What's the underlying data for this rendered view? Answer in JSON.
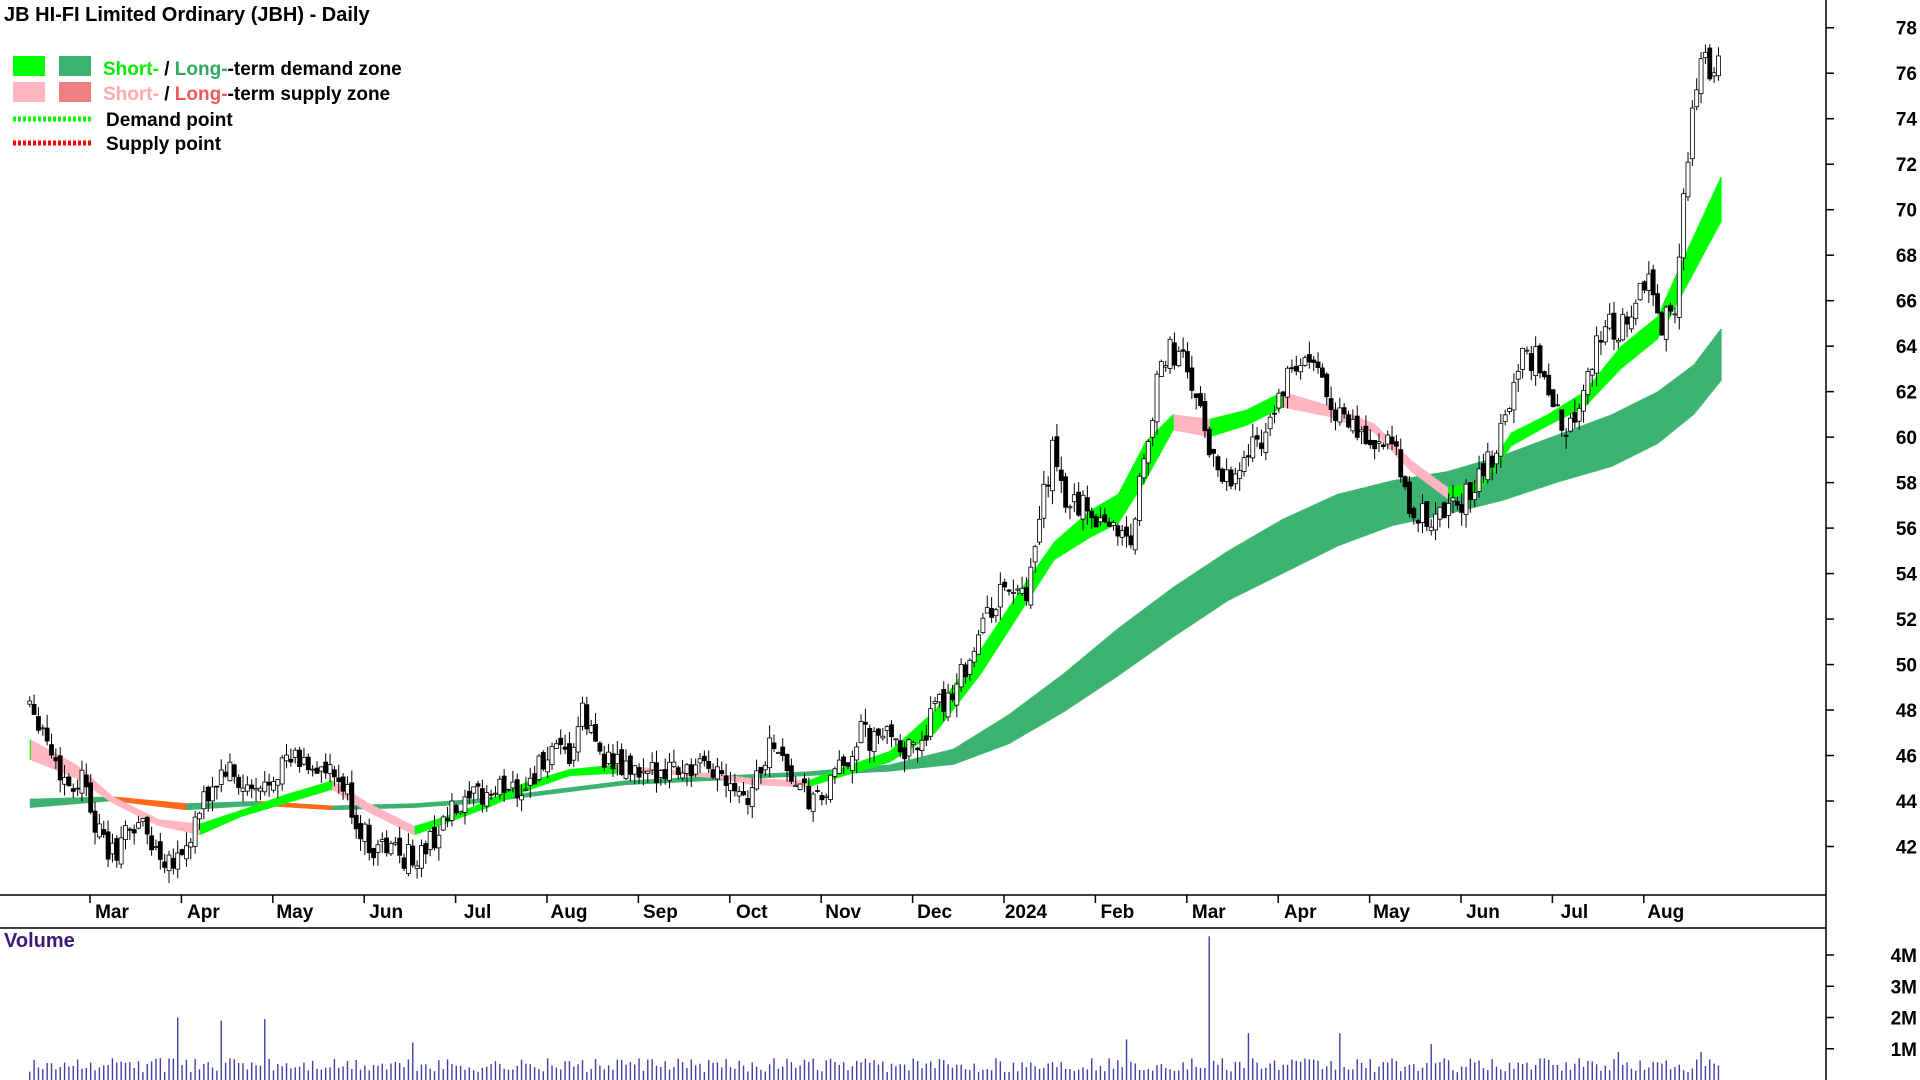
{
  "title": "JB HI-FI Limited Ordinary (JBH) - Daily",
  "legend": {
    "demand_zone": {
      "short": "Short-",
      "sep": " / ",
      "long": "Long-",
      "rest": "-term demand zone"
    },
    "supply_zone": {
      "short": "Short-",
      "sep": " / ",
      "long": "Long-",
      "rest": "-term supply zone"
    },
    "demand_point": "Demand point",
    "supply_point": "Supply point"
  },
  "volume_label": "Volume",
  "colors": {
    "short_demand": "#00ff00",
    "long_demand": "#3cb371",
    "short_supply": "#ffb6c1",
    "long_supply": "#f07f7f",
    "crossover": "#ff6a1a",
    "candles": "#000000",
    "volume": "#3f3fa6",
    "short_demand_text": "#00ee00",
    "long_demand_text": "#2eaa5e",
    "short_supply_text": "#ffaaaa",
    "long_supply_text": "#f05a5a",
    "demand_point": "#00ff00",
    "supply_point": "#ff0000"
  },
  "chart_data": {
    "type": "candlestick",
    "title": "JB HI-FI Limited Ordinary (JBH) - Daily",
    "price_axis": {
      "ticks": [
        "42",
        "44",
        "46",
        "48",
        "50",
        "52",
        "54",
        "56",
        "58",
        "60",
        "62",
        "64",
        "66",
        "68",
        "70",
        "72",
        "74",
        "76",
        "78"
      ],
      "range": [
        40,
        79
      ]
    },
    "volume_axis": {
      "ticks": [
        "1M",
        "2M",
        "3M",
        "4M"
      ],
      "range": [
        0,
        4.8
      ]
    },
    "months": [
      "Mar",
      "Apr",
      "May",
      "Jun",
      "Jul",
      "Aug",
      "Sep",
      "Oct",
      "Nov",
      "Dec",
      "2024",
      "Feb",
      "Mar",
      "Apr",
      "May",
      "Jun",
      "Jul",
      "Aug"
    ],
    "month_positions": [
      3.0,
      4.0,
      5.0,
      6.0,
      7.0,
      8.0,
      9.0,
      10.0,
      11.0,
      12.0,
      13.0,
      14.0,
      15.0,
      16.0,
      17.0,
      18.0,
      19.0,
      20.0
    ],
    "period": [
      2.1,
      20.6
    ],
    "close_path": [
      [
        2.1,
        48.5
      ],
      [
        2.25,
        47.2
      ],
      [
        2.4,
        45.5
      ],
      [
        2.55,
        44.6
      ],
      [
        2.7,
        45.2
      ],
      [
        2.85,
        42.5
      ],
      [
        3.0,
        41.6
      ],
      [
        3.15,
        42.5
      ],
      [
        3.3,
        43.2
      ],
      [
        3.45,
        42.0
      ],
      [
        3.6,
        41.5
      ],
      [
        3.8,
        41.8
      ],
      [
        3.95,
        43.4
      ],
      [
        4.1,
        44.6
      ],
      [
        4.25,
        45.4
      ],
      [
        4.4,
        44.6
      ],
      [
        4.6,
        44.2
      ],
      [
        4.8,
        45.5
      ],
      [
        5.0,
        45.8
      ],
      [
        5.2,
        45.6
      ],
      [
        5.4,
        45.0
      ],
      [
        5.55,
        44.5
      ],
      [
        5.7,
        42.8
      ],
      [
        5.85,
        42.0
      ],
      [
        6.0,
        42.0
      ],
      [
        6.2,
        41.6
      ],
      [
        6.35,
        41.5
      ],
      [
        6.5,
        42.3
      ],
      [
        6.7,
        43.4
      ],
      [
        6.85,
        43.6
      ],
      [
        7.0,
        44.2
      ],
      [
        7.2,
        44.4
      ],
      [
        7.35,
        44.8
      ],
      [
        7.5,
        44.5
      ],
      [
        7.65,
        45.4
      ],
      [
        7.8,
        46.0
      ],
      [
        8.0,
        45.8
      ],
      [
        8.15,
        47.8
      ],
      [
        8.3,
        46.5
      ],
      [
        8.5,
        45.5
      ],
      [
        8.7,
        45.3
      ],
      [
        8.85,
        44.8
      ],
      [
        9.0,
        45.6
      ],
      [
        9.2,
        45.5
      ],
      [
        9.4,
        45.3
      ],
      [
        9.6,
        45.4
      ],
      [
        9.8,
        45.0
      ],
      [
        9.95,
        44.2
      ],
      [
        10.1,
        45.5
      ],
      [
        10.25,
        46.8
      ],
      [
        10.4,
        45.3
      ],
      [
        10.55,
        44.3
      ],
      [
        10.7,
        43.8
      ],
      [
        10.85,
        44.6
      ],
      [
        11.0,
        45.6
      ],
      [
        11.2,
        47.0
      ],
      [
        11.35,
        46.5
      ],
      [
        11.55,
        47.2
      ],
      [
        11.7,
        46.0
      ],
      [
        11.85,
        46.8
      ],
      [
        12.0,
        47.8
      ],
      [
        12.2,
        49.0
      ],
      [
        12.4,
        50.5
      ],
      [
        12.55,
        52.0
      ],
      [
        12.7,
        53.0
      ],
      [
        12.85,
        53.5
      ],
      [
        13.0,
        52.5
      ],
      [
        13.1,
        55.0
      ],
      [
        13.2,
        57.5
      ],
      [
        13.3,
        59.5
      ],
      [
        13.4,
        57.3
      ],
      [
        13.6,
        57.0
      ],
      [
        13.8,
        56.5
      ],
      [
        14.0,
        56.0
      ],
      [
        14.15,
        55.5
      ],
      [
        14.3,
        59.5
      ],
      [
        14.45,
        62.5
      ],
      [
        14.55,
        63.8
      ],
      [
        14.7,
        63.5
      ],
      [
        14.85,
        62.0
      ],
      [
        15.0,
        59.5
      ],
      [
        15.15,
        58.5
      ],
      [
        15.3,
        58.3
      ],
      [
        15.45,
        59.5
      ],
      [
        15.6,
        60.2
      ],
      [
        15.75,
        61.5
      ],
      [
        15.9,
        62.8
      ],
      [
        16.05,
        63.2
      ],
      [
        16.2,
        62.8
      ],
      [
        16.35,
        61.5
      ],
      [
        16.5,
        60.5
      ],
      [
        16.7,
        60.0
      ],
      [
        16.9,
        59.5
      ],
      [
        17.05,
        59.5
      ],
      [
        17.15,
        57.2
      ],
      [
        17.3,
        56.5
      ],
      [
        17.5,
        56.5
      ],
      [
        17.7,
        57.0
      ],
      [
        17.85,
        57.5
      ],
      [
        18.0,
        58.5
      ],
      [
        18.15,
        59.5
      ],
      [
        18.3,
        62.0
      ],
      [
        18.45,
        63.5
      ],
      [
        18.6,
        63.5
      ],
      [
        18.75,
        61.5
      ],
      [
        18.9,
        60.2
      ],
      [
        19.05,
        61.5
      ],
      [
        19.2,
        63.5
      ],
      [
        19.35,
        65.0
      ],
      [
        19.5,
        64.8
      ],
      [
        19.65,
        65.5
      ],
      [
        19.8,
        67.0
      ],
      [
        19.95,
        65.0
      ],
      [
        20.1,
        66.0
      ],
      [
        20.2,
        70.5
      ],
      [
        20.3,
        74.5
      ],
      [
        20.4,
        76.5
      ],
      [
        20.5,
        76.3
      ],
      [
        20.6,
        77.2
      ]
    ],
    "short_term_zone": [
      [
        2.1,
        46.7,
        45.8
      ],
      [
        2.6,
        45.6,
        45.0
      ],
      [
        3.0,
        44.2,
        43.9
      ],
      [
        3.5,
        43.2,
        42.9
      ],
      [
        3.95,
        43.0,
        42.5
      ],
      [
        4.4,
        43.6,
        43.3
      ],
      [
        4.9,
        44.3,
        43.9
      ],
      [
        5.4,
        44.9,
        44.5
      ],
      [
        5.8,
        43.9,
        43.5
      ],
      [
        6.3,
        42.9,
        42.5
      ],
      [
        6.7,
        43.4,
        43.1
      ],
      [
        7.1,
        44.0,
        43.7
      ],
      [
        7.5,
        44.8,
        44.4
      ],
      [
        8.0,
        45.4,
        45.1
      ],
      [
        8.5,
        45.6,
        45.2
      ],
      [
        9.0,
        45.4,
        45.2
      ],
      [
        9.6,
        45.2,
        45.0
      ],
      [
        10.0,
        45.0,
        44.7
      ],
      [
        10.6,
        44.9,
        44.6
      ],
      [
        11.0,
        45.5,
        45.1
      ],
      [
        11.5,
        46.2,
        45.7
      ],
      [
        12.0,
        48.0,
        47.0
      ],
      [
        12.5,
        50.7,
        49.6
      ],
      [
        12.9,
        53.1,
        52.1
      ],
      [
        13.3,
        55.4,
        54.6
      ],
      [
        13.7,
        56.8,
        55.6
      ],
      [
        14.0,
        57.5,
        56.2
      ],
      [
        14.3,
        59.8,
        58.1
      ],
      [
        14.6,
        61.0,
        60.3
      ],
      [
        15.0,
        60.8,
        60.0
      ],
      [
        15.4,
        61.2,
        60.5
      ],
      [
        15.8,
        62.0,
        61.3
      ],
      [
        16.3,
        61.4,
        60.9
      ],
      [
        16.8,
        60.6,
        60.2
      ],
      [
        17.2,
        59.0,
        58.5
      ],
      [
        17.6,
        57.8,
        57.3
      ],
      [
        17.95,
        58.0,
        57.6
      ],
      [
        18.3,
        60.2,
        59.6
      ],
      [
        18.7,
        61.0,
        60.5
      ],
      [
        19.1,
        62.0,
        61.3
      ],
      [
        19.5,
        64.0,
        63.0
      ],
      [
        19.9,
        65.3,
        64.3
      ],
      [
        20.2,
        68.0,
        66.5
      ],
      [
        20.6,
        71.5,
        69.5
      ]
    ],
    "long_term_zone": [
      [
        2.1,
        44.1,
        43.7
      ],
      [
        3.0,
        44.2,
        44.0
      ],
      [
        3.8,
        43.9,
        43.6
      ],
      [
        4.6,
        44.0,
        43.8
      ],
      [
        5.4,
        43.8,
        43.6
      ],
      [
        6.3,
        43.9,
        43.7
      ],
      [
        7.0,
        44.1,
        43.9
      ],
      [
        7.8,
        44.5,
        44.3
      ],
      [
        8.6,
        44.9,
        44.7
      ],
      [
        9.6,
        45.1,
        44.9
      ],
      [
        10.6,
        45.3,
        45.1
      ],
      [
        11.5,
        45.6,
        45.3
      ],
      [
        12.2,
        46.3,
        45.6
      ],
      [
        12.8,
        47.8,
        46.5
      ],
      [
        13.4,
        49.6,
        47.9
      ],
      [
        14.0,
        51.6,
        49.5
      ],
      [
        14.6,
        53.4,
        51.2
      ],
      [
        15.2,
        55.0,
        52.8
      ],
      [
        15.8,
        56.4,
        54.0
      ],
      [
        16.4,
        57.5,
        55.2
      ],
      [
        17.0,
        58.1,
        56.1
      ],
      [
        17.6,
        58.5,
        56.6
      ],
      [
        18.2,
        59.2,
        57.2
      ],
      [
        18.8,
        60.1,
        58.0
      ],
      [
        19.4,
        61.0,
        58.7
      ],
      [
        19.9,
        62.0,
        59.7
      ],
      [
        20.3,
        63.2,
        61.0
      ],
      [
        20.6,
        64.8,
        62.5
      ]
    ],
    "volume_spikes": [
      [
        3.7,
        2.0
      ],
      [
        4.2,
        1.9
      ],
      [
        4.65,
        1.95
      ],
      [
        6.3,
        1.2
      ],
      [
        14.1,
        1.3
      ],
      [
        15.0,
        4.6
      ],
      [
        15.45,
        1.5
      ],
      [
        16.45,
        1.5
      ],
      [
        17.45,
        1.15
      ],
      [
        19.5,
        0.9
      ],
      [
        20.4,
        0.9
      ]
    ]
  }
}
